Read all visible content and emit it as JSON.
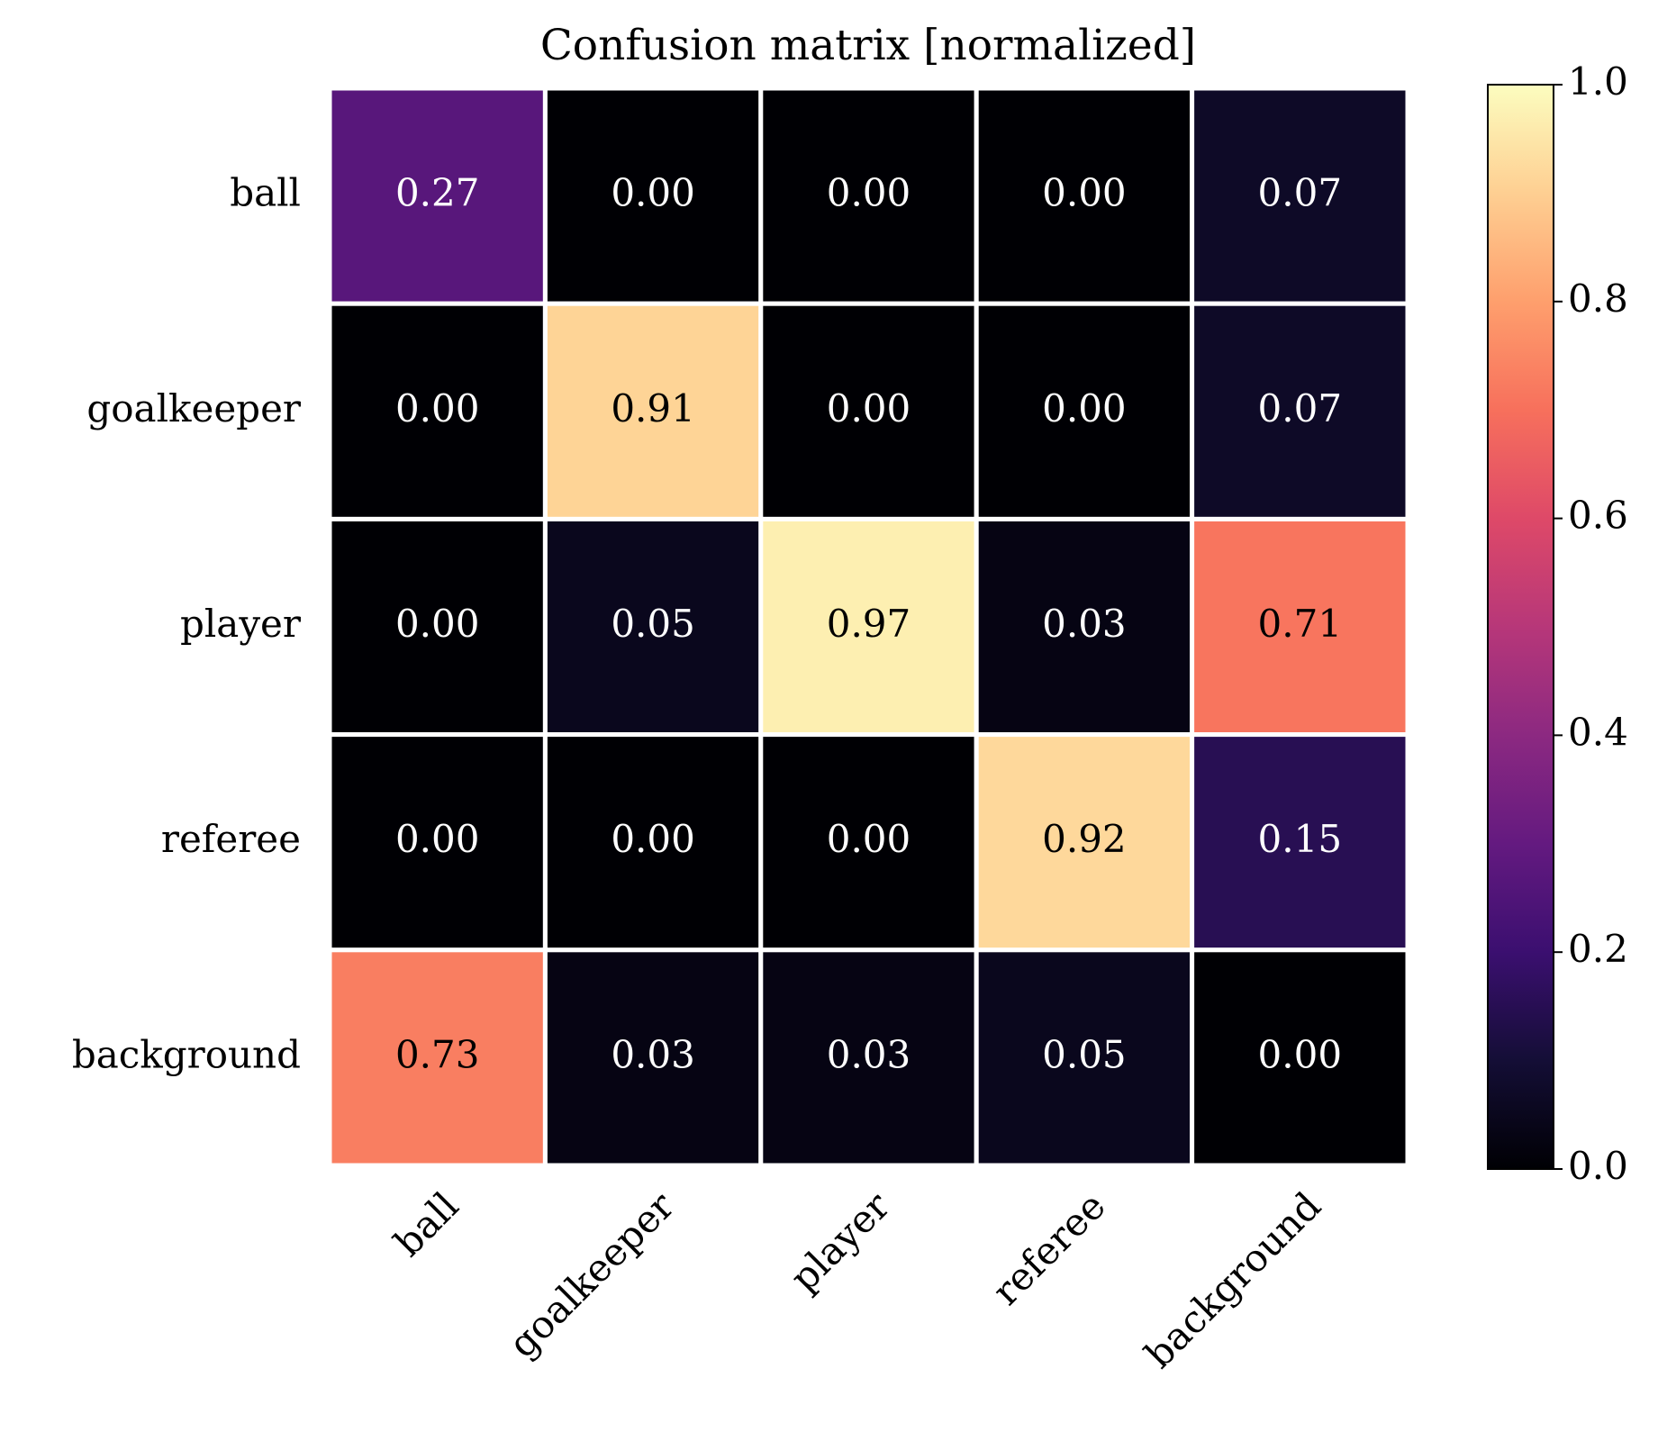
{
  "chart_data": {
    "type": "heatmap",
    "title": "Confusion matrix [normalized]",
    "rows": [
      "ball",
      "goalkeeper",
      "player",
      "referee",
      "background"
    ],
    "columns": [
      "ball",
      "goalkeeper",
      "player",
      "referee",
      "background"
    ],
    "values": [
      [
        0.27,
        0,
        0,
        0,
        0.07
      ],
      [
        0,
        0.91,
        0,
        0,
        0.07
      ],
      [
        0,
        0.05,
        0.97,
        0.03,
        0.71
      ],
      [
        0,
        0,
        0,
        0.92,
        0.15
      ],
      [
        0.73,
        0.03,
        0.03,
        0.05,
        0
      ]
    ],
    "value_labels": [
      [
        "0.27",
        "0.00",
        "0.00",
        "0.00",
        "0.07"
      ],
      [
        "0.00",
        "0.91",
        "0.00",
        "0.00",
        "0.07"
      ],
      [
        "0.00",
        "0.05",
        "0.97",
        "0.03",
        "0.71"
      ],
      [
        "0.00",
        "0.00",
        "0.00",
        "0.92",
        "0.15"
      ],
      [
        "0.73",
        "0.03",
        "0.03",
        "0.05",
        "0.00"
      ]
    ],
    "colormap": "magma",
    "clim": [
      0,
      1
    ],
    "cticks": [
      {
        "value": 0,
        "label": "0.0"
      },
      {
        "value": 0.2,
        "label": "0.2"
      },
      {
        "value": 0.4,
        "label": "0.4"
      },
      {
        "value": 0.6,
        "label": "0.6"
      },
      {
        "value": 0.8,
        "label": "0.8"
      },
      {
        "value": 1,
        "label": "1.0"
      }
    ]
  }
}
